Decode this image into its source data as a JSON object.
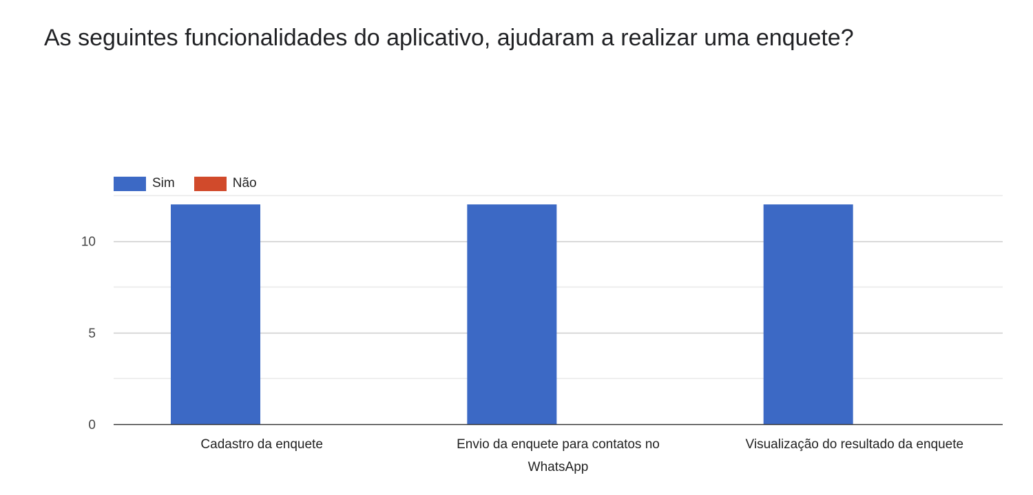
{
  "chart_data": {
    "type": "bar",
    "title": "As seguintes funcionalidades do aplicativo, ajudaram a realizar uma enquete?",
    "categories": [
      [
        "Cadastro da enquete"
      ],
      [
        "Envio da enquete para contatos no",
        "WhatsApp"
      ],
      [
        "Visualização do resultado da enquete"
      ]
    ],
    "series": [
      {
        "name": "Sim",
        "color": "#3c69c5",
        "values": [
          12,
          12,
          12
        ]
      },
      {
        "name": "Não",
        "color": "#d14a2b",
        "values": [
          0,
          0,
          0
        ]
      }
    ],
    "ylim": [
      0,
      12.5
    ],
    "yticks": [
      0,
      5,
      10
    ],
    "gridlines": [
      0,
      2.5,
      5,
      7.5,
      10,
      12.5
    ],
    "legend_position": "top-left",
    "grid": true
  }
}
